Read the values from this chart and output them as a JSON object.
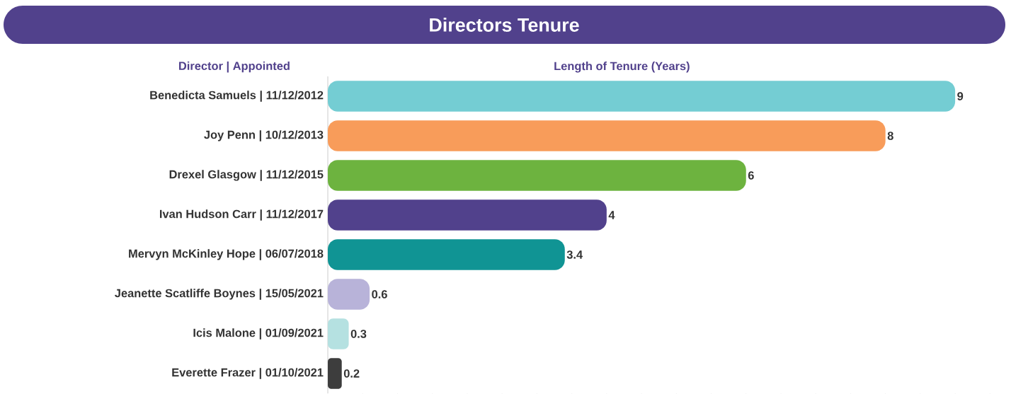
{
  "chart_data": {
    "type": "bar",
    "orientation": "horizontal",
    "title": "Directors Tenure",
    "xlabel": "Length of Tenure (Years)",
    "ylabel": "Director | Appointed",
    "categories": [
      "Benedicta Samuels | 11/12/2012",
      "Joy Penn | 10/12/2013",
      "Drexel Glasgow | 11/12/2015",
      "Ivan Hudson Carr | 11/12/2017",
      "Mervyn McKinley Hope | 06/07/2018",
      "Jeanette Scatliffe Boynes | 15/05/2021",
      "Icis Malone | 01/09/2021",
      "Everette Frazer | 01/10/2021"
    ],
    "values": [
      9,
      8,
      6,
      4,
      3.4,
      0.6,
      0.3,
      0.2
    ],
    "colors": [
      "#74cdd3",
      "#f89c5a",
      "#6db33f",
      "#51418c",
      "#109494",
      "#b8b3d9",
      "#b5e1e1",
      "#3d3d3d"
    ],
    "data_labels": true,
    "grid": false
  }
}
